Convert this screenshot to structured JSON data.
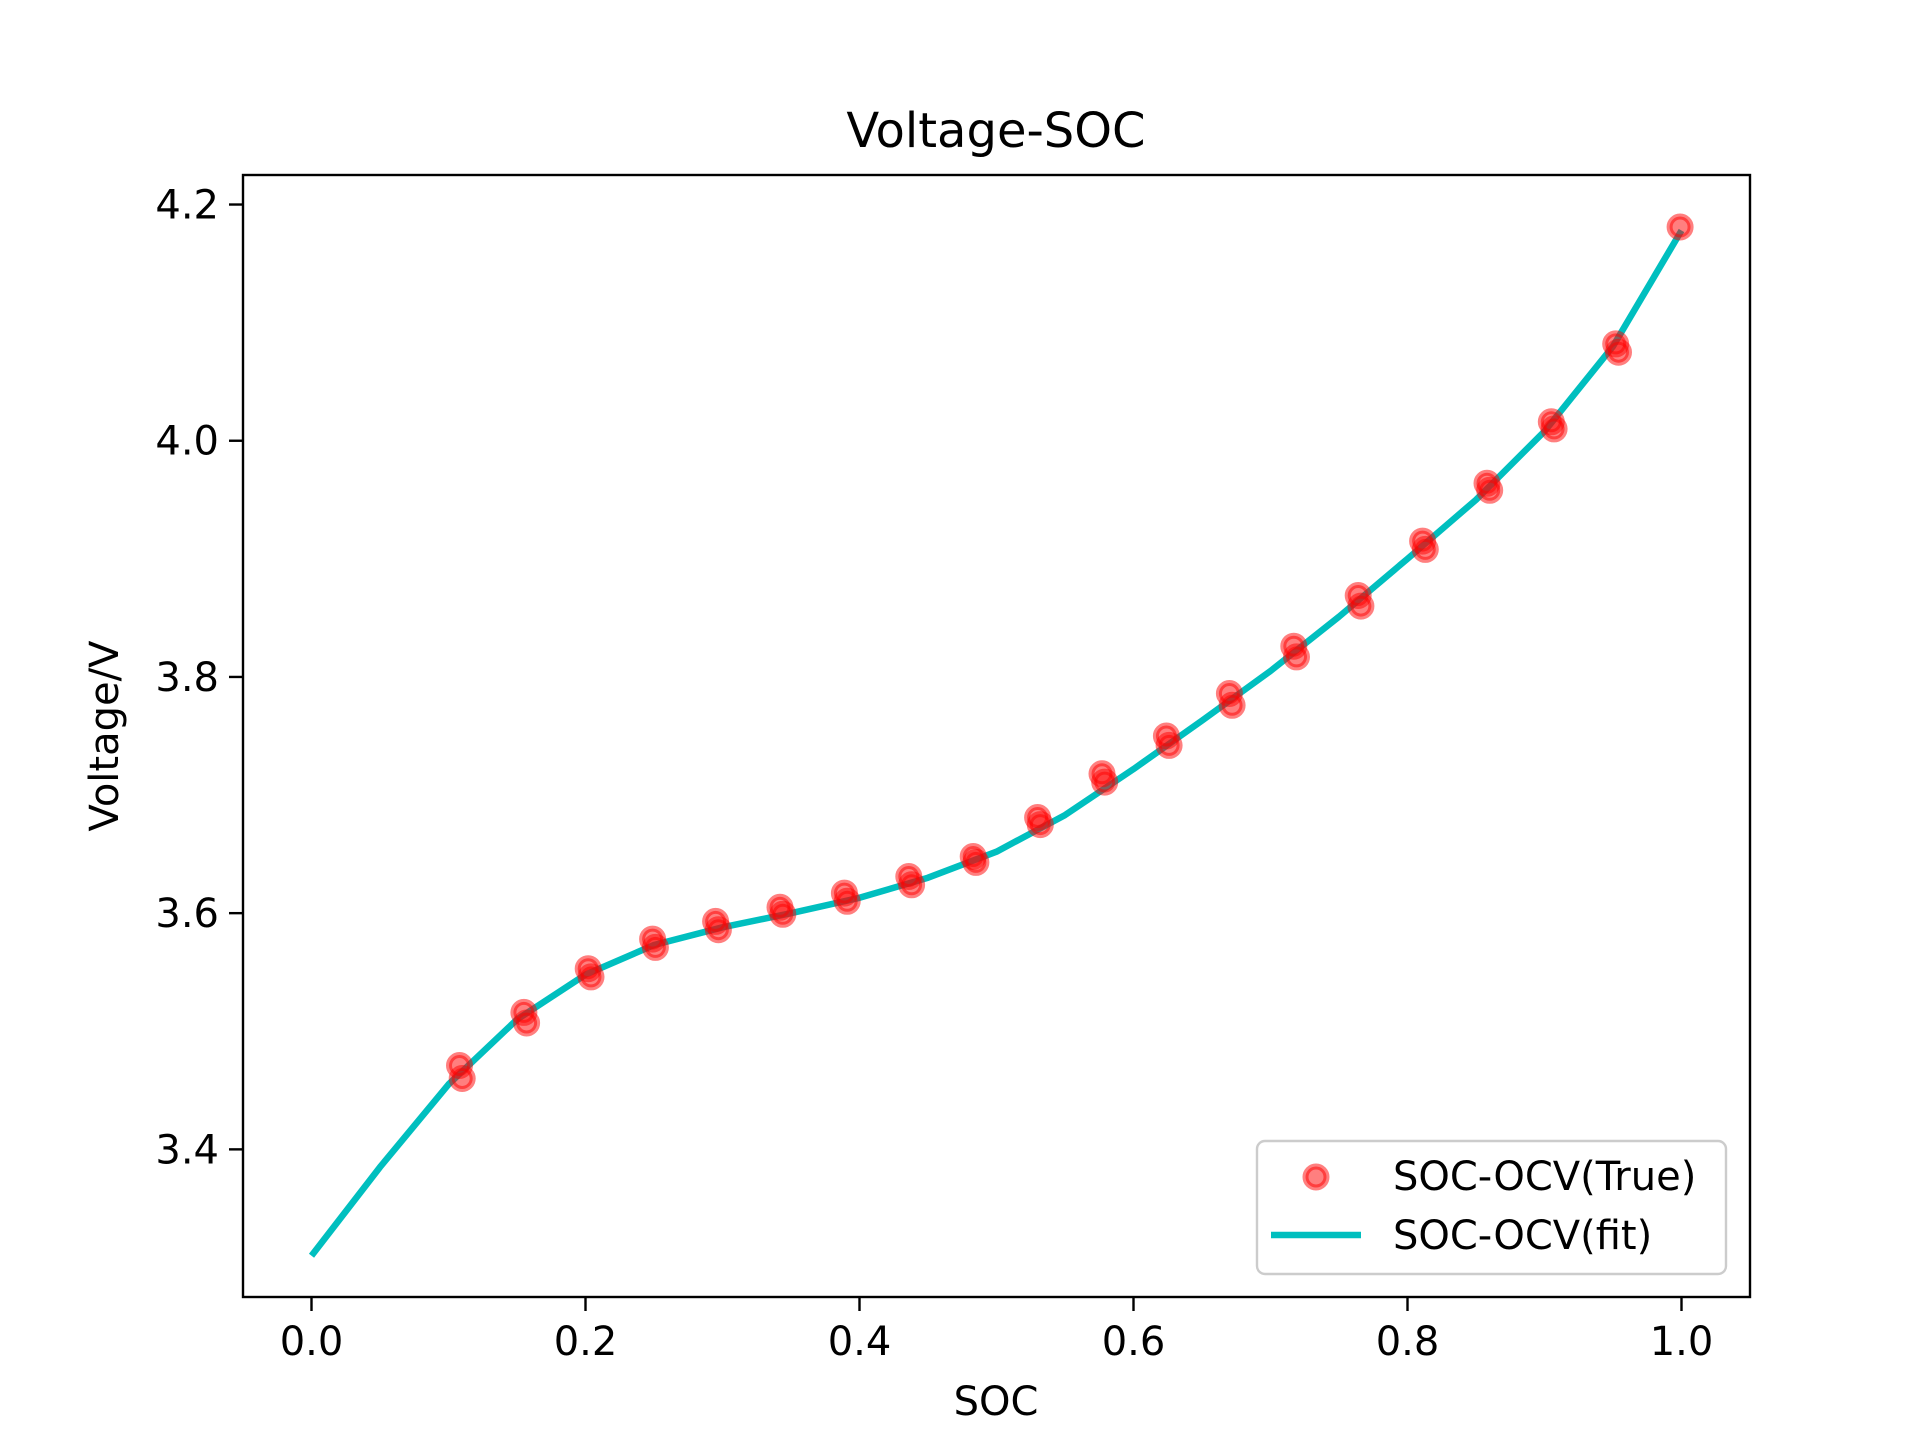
{
  "chart_data": {
    "type": "scatter",
    "title": "Voltage-SOC",
    "xlabel": "SOC",
    "ylabel": "Voltage/V",
    "xlim": [
      -0.05,
      1.05
    ],
    "ylim": [
      3.275,
      4.225
    ],
    "xticks": [
      0.0,
      0.2,
      0.4,
      0.6,
      0.8,
      1.0
    ],
    "xtick_labels": [
      "0.0",
      "0.2",
      "0.4",
      "0.6",
      "0.8",
      "1.0"
    ],
    "yticks": [
      3.4,
      3.6,
      3.8,
      4.0,
      4.2
    ],
    "ytick_labels": [
      "3.4",
      "3.6",
      "3.8",
      "4.0",
      "4.2"
    ],
    "grid": false,
    "legend_position": "lower-right",
    "series": [
      {
        "name": "SOC-OCV(True)",
        "kind": "scatter",
        "color": "#ff0000",
        "x": [
          0.108,
          0.11,
          0.155,
          0.157,
          0.202,
          0.204,
          0.249,
          0.251,
          0.295,
          0.297,
          0.342,
          0.344,
          0.389,
          0.391,
          0.436,
          0.438,
          0.483,
          0.485,
          0.53,
          0.532,
          0.577,
          0.579,
          0.624,
          0.626,
          0.67,
          0.672,
          0.717,
          0.719,
          0.764,
          0.766,
          0.811,
          0.813,
          0.858,
          0.86,
          0.905,
          0.907,
          0.952,
          0.954,
          0.999
        ],
        "y": [
          3.471,
          3.46,
          3.516,
          3.507,
          3.553,
          3.546,
          3.578,
          3.571,
          3.593,
          3.586,
          3.605,
          3.599,
          3.617,
          3.61,
          3.631,
          3.624,
          3.648,
          3.643,
          3.681,
          3.675,
          3.718,
          3.711,
          3.75,
          3.742,
          3.786,
          3.776,
          3.826,
          3.817,
          3.869,
          3.86,
          3.915,
          3.908,
          3.964,
          3.958,
          4.016,
          4.01,
          4.082,
          4.075,
          4.181
        ]
      },
      {
        "name": "SOC-OCV(fit)",
        "kind": "line",
        "color": "#00bfbf",
        "x": [
          0.0,
          0.05,
          0.1,
          0.15,
          0.2,
          0.25,
          0.3,
          0.35,
          0.4,
          0.45,
          0.5,
          0.55,
          0.6,
          0.65,
          0.7,
          0.75,
          0.8,
          0.85,
          0.9,
          0.95,
          1.0
        ],
        "y": [
          3.31,
          3.385,
          3.455,
          3.51,
          3.548,
          3.573,
          3.588,
          3.6,
          3.613,
          3.63,
          3.652,
          3.683,
          3.722,
          3.763,
          3.805,
          3.851,
          3.9,
          3.95,
          4.008,
          4.08,
          4.178
        ]
      }
    ]
  }
}
